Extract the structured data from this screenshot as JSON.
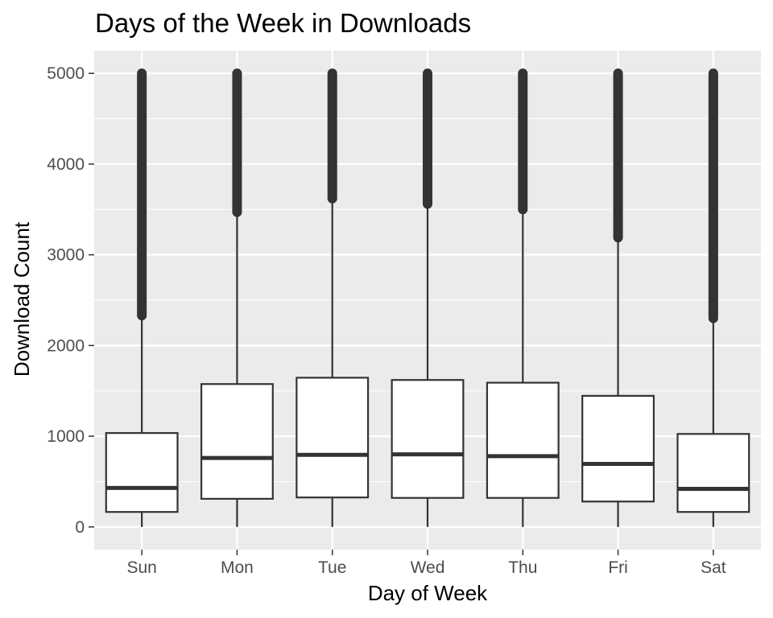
{
  "chart_data": {
    "type": "box",
    "title": "Days of the Week in Downloads",
    "xlabel": "Day of Week",
    "ylabel": "Download Count",
    "categories": [
      "Sun",
      "Mon",
      "Tue",
      "Wed",
      "Thu",
      "Fri",
      "Sat"
    ],
    "yticks": [
      0,
      1000,
      2000,
      3000,
      4000,
      5000
    ],
    "ylim": [
      -250,
      5250
    ],
    "grid": true,
    "boxes": [
      {
        "category": "Sun",
        "q1": 165,
        "median": 430,
        "q3": 1035,
        "whisker_low": 0,
        "whisker_high": 2330,
        "outliers_from": 2330,
        "outliers_to": 5000
      },
      {
        "category": "Mon",
        "q1": 310,
        "median": 760,
        "q3": 1575,
        "whisker_low": 0,
        "whisker_high": 3470,
        "outliers_from": 3470,
        "outliers_to": 5000
      },
      {
        "category": "Tue",
        "q1": 325,
        "median": 795,
        "q3": 1645,
        "whisker_low": 0,
        "whisker_high": 3620,
        "outliers_from": 3620,
        "outliers_to": 5000
      },
      {
        "category": "Wed",
        "q1": 320,
        "median": 800,
        "q3": 1620,
        "whisker_low": 0,
        "whisker_high": 3560,
        "outliers_from": 3560,
        "outliers_to": 5000
      },
      {
        "category": "Thu",
        "q1": 320,
        "median": 780,
        "q3": 1590,
        "whisker_low": 0,
        "whisker_high": 3500,
        "outliers_from": 3500,
        "outliers_to": 5000
      },
      {
        "category": "Fri",
        "q1": 280,
        "median": 695,
        "q3": 1445,
        "whisker_low": 0,
        "whisker_high": 3190,
        "outliers_from": 3190,
        "outliers_to": 5000
      },
      {
        "category": "Sat",
        "q1": 165,
        "median": 420,
        "q3": 1025,
        "whisker_low": 0,
        "whisker_high": 2300,
        "outliers_from": 2300,
        "outliers_to": 5000
      }
    ],
    "colors": {
      "panel": "#ebebeb",
      "grid": "#ffffff",
      "box_fill": "#ffffff",
      "line": "#333333",
      "tick_text": "#4d4d4d"
    }
  }
}
